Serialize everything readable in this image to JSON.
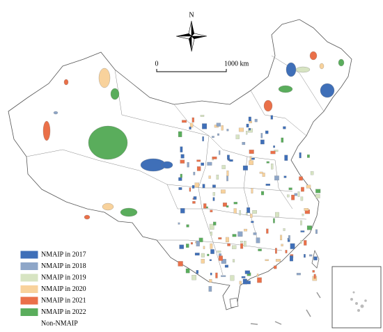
{
  "map": {
    "north_label": "N",
    "scale_bar": {
      "start": "0",
      "end": "1000 km"
    },
    "legend": [
      {
        "label": "NMAIP in 2017",
        "color": "#3f6fb8"
      },
      {
        "label": "NMAIP in 2018",
        "color": "#8ea6c8"
      },
      {
        "label": "NMAIP in 2019",
        "color": "#d7e4c2"
      },
      {
        "label": "NMAIP in 2020",
        "color": "#f8d29c"
      },
      {
        "label": "NMAIP in 2021",
        "color": "#ea7049"
      },
      {
        "label": "NMAIP in 2022",
        "color": "#5aad5c"
      },
      {
        "label": "Non-NMAIP",
        "color": "#ffffff"
      }
    ]
  }
}
